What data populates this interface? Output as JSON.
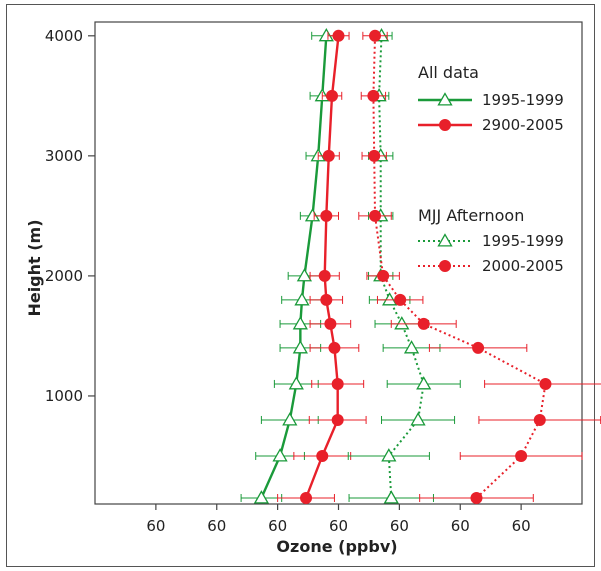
{
  "chart_data": {
    "type": "line",
    "xlabel": "Ozone (ppbv)",
    "ylabel": "Height (m)",
    "x_tick_labels": [
      "60",
      "60",
      "60",
      "60",
      "60",
      "60",
      "60"
    ],
    "y_ticks": [
      1000,
      2000,
      3000,
      4000
    ],
    "y_tick_labels": [
      "1000",
      "2000",
      "3000",
      "4000"
    ],
    "ylim": [
      100,
      4000
    ],
    "grid": false,
    "legend_placement": "top-right",
    "legends": [
      {
        "title": "All data",
        "entries": [
          "1995-1999",
          "2900-2005"
        ]
      },
      {
        "title": "MJJ Afternoon",
        "entries": [
          "1995-1999",
          "2000-2005"
        ]
      }
    ],
    "heights": [
      150,
      500,
      800,
      1100,
      1400,
      1600,
      1800,
      2000,
      2500,
      3000,
      3500,
      4000
    ],
    "series": [
      {
        "group": "All data",
        "name": "1995-1999",
        "color": "#1a9a3a",
        "marker": "triangle",
        "line": "solid",
        "x": [
          64.5,
          66.8,
          68.0,
          68.8,
          69.3,
          69.3,
          69.5,
          69.8,
          70.8,
          71.5,
          72.0,
          72.5
        ],
        "err": [
          2.5,
          3.0,
          3.5,
          2.7,
          2.5,
          2.5,
          2.5,
          2.0,
          1.5,
          1.5,
          1.5,
          1.8
        ]
      },
      {
        "group": "All data",
        "name": "2900-2005",
        "color": "#e8202a",
        "marker": "circle",
        "line": "solid",
        "x": [
          70.0,
          72.0,
          73.9,
          73.9,
          73.5,
          73.0,
          72.5,
          72.3,
          72.5,
          72.8,
          73.2,
          74.0
        ],
        "err": [
          3.5,
          3.5,
          3.5,
          3.2,
          3.0,
          2.5,
          2.0,
          1.8,
          1.5,
          1.3,
          1.2,
          1.3
        ]
      },
      {
        "group": "MJJ Afternoon",
        "name": "1995-1999",
        "color": "#1a9a3a",
        "marker": "triangle",
        "line": "dotted",
        "x": [
          80.5,
          80.2,
          83.8,
          84.5,
          83.0,
          81.8,
          80.3,
          79.2,
          79.2,
          79.2,
          79.0,
          79.3
        ],
        "err": [
          5.2,
          5.0,
          4.5,
          4.5,
          3.5,
          3.3,
          2.5,
          1.5,
          1.5,
          1.5,
          1.2,
          1.3
        ]
      },
      {
        "group": "MJJ Afternoon",
        "name": "2000-2005",
        "color": "#e8202a",
        "marker": "circle",
        "line": "dotted",
        "x": [
          91.0,
          96.5,
          98.8,
          99.5,
          91.2,
          84.5,
          81.6,
          79.5,
          78.5,
          78.4,
          78.3,
          78.5
        ],
        "err": [
          7.0,
          7.5,
          7.5,
          7.5,
          6.0,
          4.0,
          2.8,
          2.0,
          2.0,
          1.5,
          1.5,
          1.5
        ]
      }
    ]
  }
}
